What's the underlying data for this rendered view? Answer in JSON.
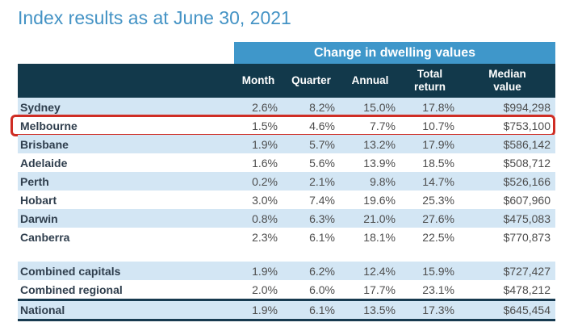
{
  "page_title": "Index results as at June 30, 2021",
  "banner_label": "Change in dwelling values",
  "chart_data": {
    "type": "table",
    "title": "Index results as at June 30, 2021",
    "banner": "Change in dwelling values",
    "columns": [
      "Month",
      "Quarter",
      "Annual",
      "Total return",
      "Median value"
    ],
    "highlighted_row": "Melbourne",
    "rows": [
      {
        "label": "Sydney",
        "values": [
          "2.6%",
          "8.2%",
          "15.0%",
          "17.8%",
          "$994,298"
        ],
        "shade": true
      },
      {
        "label": "Melbourne",
        "values": [
          "1.5%",
          "4.6%",
          "7.7%",
          "10.7%",
          "$753,100"
        ],
        "shade": false,
        "highlighted": true
      },
      {
        "label": "Brisbane",
        "values": [
          "1.9%",
          "5.7%",
          "13.2%",
          "17.9%",
          "$586,142"
        ],
        "shade": true
      },
      {
        "label": "Adelaide",
        "values": [
          "1.6%",
          "5.6%",
          "13.9%",
          "18.5%",
          "$508,712"
        ],
        "shade": false
      },
      {
        "label": "Perth",
        "values": [
          "0.2%",
          "2.1%",
          "9.8%",
          "14.7%",
          "$526,166"
        ],
        "shade": true
      },
      {
        "label": "Hobart",
        "values": [
          "3.0%",
          "7.4%",
          "19.6%",
          "25.3%",
          "$607,960"
        ],
        "shade": false
      },
      {
        "label": "Darwin",
        "values": [
          "0.8%",
          "6.3%",
          "21.0%",
          "27.6%",
          "$475,083"
        ],
        "shade": true
      },
      {
        "label": "Canberra",
        "values": [
          "2.3%",
          "6.1%",
          "18.1%",
          "22.5%",
          "$770,873"
        ],
        "shade": false
      },
      {
        "label": "Combined capitals",
        "values": [
          "1.9%",
          "6.2%",
          "12.4%",
          "15.9%",
          "$727,427"
        ],
        "shade": true,
        "gap_before": true
      },
      {
        "label": "Combined regional",
        "values": [
          "2.0%",
          "6.0%",
          "17.7%",
          "23.1%",
          "$478,212"
        ],
        "shade": false
      },
      {
        "label": "National",
        "values": [
          "1.9%",
          "6.1%",
          "13.5%",
          "17.3%",
          "$645,454"
        ],
        "shade": true,
        "emphasis": true
      }
    ]
  },
  "colors": {
    "title_text": "#4493c5",
    "banner_bg": "#3f97ca",
    "header_bg": "#12394b",
    "shade_row_bg": "#d3e6f4",
    "label_text": "#2f3e4d",
    "value_text": "#4d4d4d",
    "highlight_border": "#cf2d24",
    "emphasis_border": "#173a50"
  }
}
